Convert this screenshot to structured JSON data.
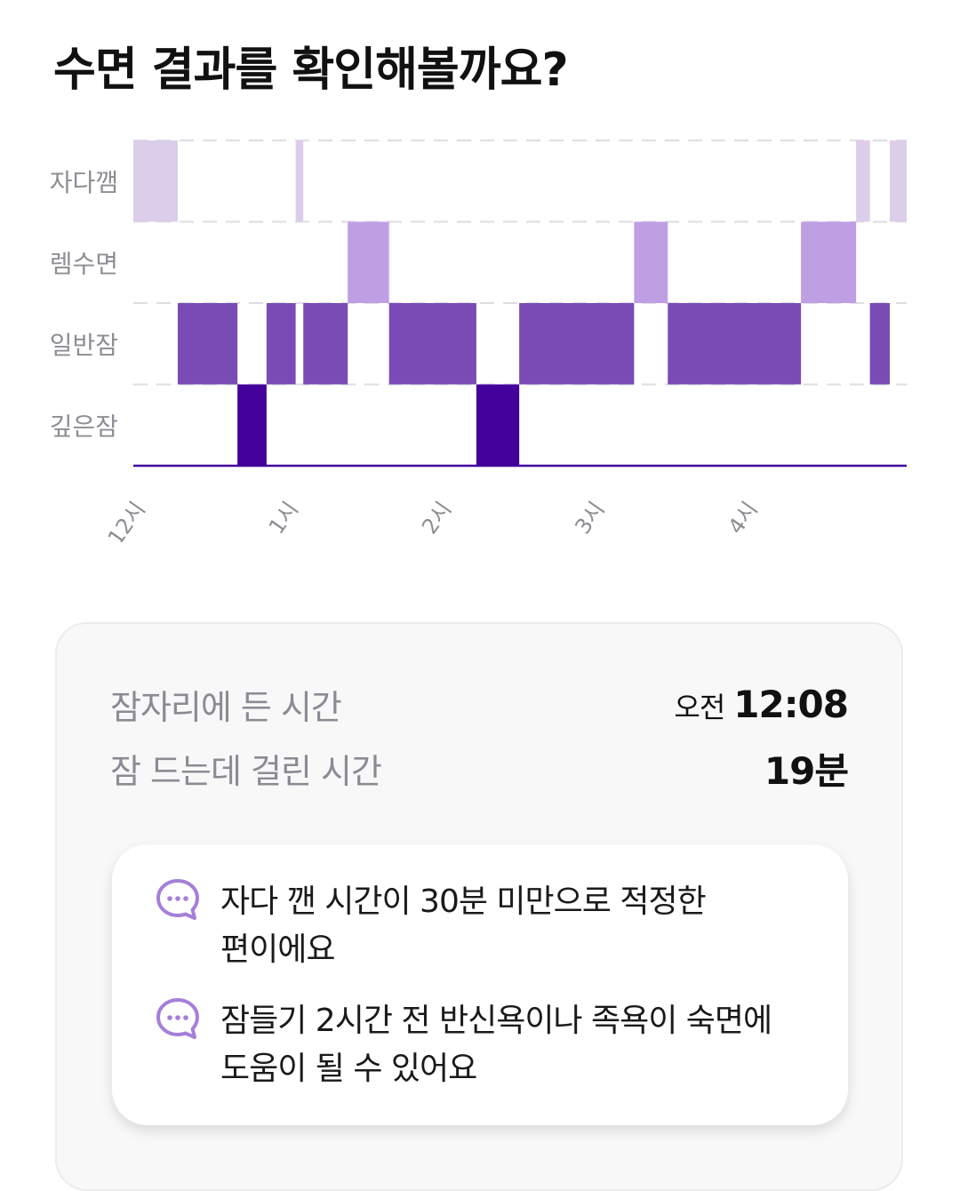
{
  "header": {
    "title": "수면 결과를 확인해볼까요?"
  },
  "chart_data": {
    "type": "heatmap",
    "title": "",
    "stages": [
      "자다깸",
      "렘수면",
      "일반잠",
      "깊은잠"
    ],
    "x_range_hours": [
      0,
      5.05
    ],
    "x_ticks": [
      {
        "label": "12시",
        "hour": 0
      },
      {
        "label": "1시",
        "hour": 1
      },
      {
        "label": "2시",
        "hour": 2
      },
      {
        "label": "3시",
        "hour": 3
      },
      {
        "label": "4시",
        "hour": 4
      }
    ],
    "colors": {
      "자다깸": "#dccdeb",
      "렘수면": "#bf9fe3",
      "일반잠": "#7a4bb5",
      "깊은잠": "#43009a"
    },
    "segments": [
      {
        "stage": "자다깸",
        "start": 0.0,
        "end": 0.29
      },
      {
        "stage": "일반잠",
        "start": 0.29,
        "end": 0.68
      },
      {
        "stage": "깊은잠",
        "start": 0.68,
        "end": 0.87
      },
      {
        "stage": "일반잠",
        "start": 0.87,
        "end": 1.06
      },
      {
        "stage": "자다깸",
        "start": 1.06,
        "end": 1.11
      },
      {
        "stage": "일반잠",
        "start": 1.11,
        "end": 1.4
      },
      {
        "stage": "렘수면",
        "start": 1.4,
        "end": 1.67
      },
      {
        "stage": "일반잠",
        "start": 1.67,
        "end": 2.24
      },
      {
        "stage": "깊은잠",
        "start": 2.24,
        "end": 2.52
      },
      {
        "stage": "일반잠",
        "start": 2.52,
        "end": 3.27
      },
      {
        "stage": "렘수면",
        "start": 3.27,
        "end": 3.49
      },
      {
        "stage": "일반잠",
        "start": 3.49,
        "end": 4.36
      },
      {
        "stage": "렘수면",
        "start": 4.36,
        "end": 4.72
      },
      {
        "stage": "자다깸",
        "start": 4.72,
        "end": 4.81
      },
      {
        "stage": "일반잠",
        "start": 4.81,
        "end": 4.94
      },
      {
        "stage": "자다깸",
        "start": 4.94,
        "end": 5.05
      }
    ]
  },
  "summary": {
    "bedtime_label": "잠자리에 든 시간",
    "bedtime_prefix": "오전",
    "bedtime_value": "12:08",
    "latency_label": "잠 드는데 걸린 시간",
    "latency_value": "19분"
  },
  "tips": [
    {
      "icon": "chat-bubble-icon",
      "text_line1": "자다 깬 시간이 30분 미만으로 적정한",
      "text_line2": "편이에요"
    },
    {
      "icon": "chat-bubble-icon",
      "text_line1": "잠들기 2시간 전 반신욕이나 족욕이 숙면에",
      "text_line2": "도움이 될 수 있어요"
    }
  ]
}
